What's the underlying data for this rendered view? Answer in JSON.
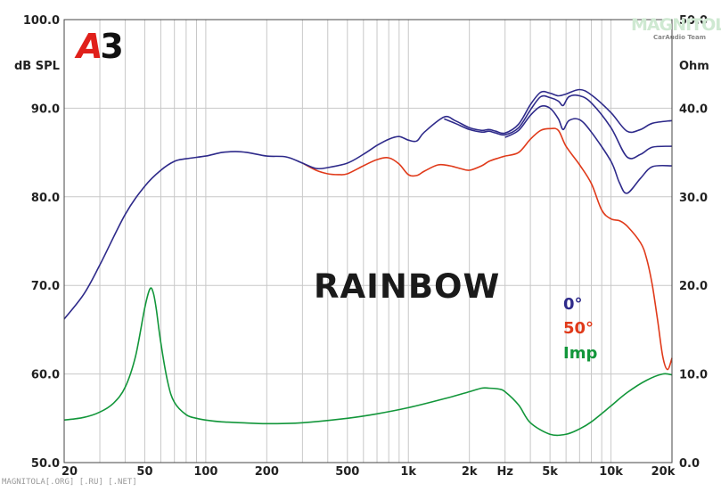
{
  "header": {
    "logo_letter": "A",
    "logo_number": "3",
    "brand_name": "MAGNITOLA",
    "brand_sub": "CarAudio Team"
  },
  "footer": {
    "watermark": "MAGNITOLA[.ORG] [.RU] [.NET]"
  },
  "colors": {
    "on_axis": "#2e2a8a",
    "off_axis": "#e03a1a",
    "impedance": "#12963a",
    "grid": "#c8c8c8"
  },
  "chart_data": {
    "type": "line",
    "title": "RAINBOW",
    "xscale": "log",
    "xlim": [
      20,
      20000
    ],
    "x_ticks": [
      {
        "v": 20,
        "label": "20"
      },
      {
        "v": 50,
        "label": "50"
      },
      {
        "v": 100,
        "label": "100"
      },
      {
        "v": 200,
        "label": "200"
      },
      {
        "v": 500,
        "label": "500"
      },
      {
        "v": 1000,
        "label": "1k"
      },
      {
        "v": 2000,
        "label": "2k"
      },
      {
        "v": 5000,
        "label": "5k"
      },
      {
        "v": 10000,
        "label": "10k"
      },
      {
        "v": 20000,
        "label": "20k"
      }
    ],
    "x_unit_label": "Hz",
    "x_unit_at": 3000,
    "ylabel_left": "dB SPL",
    "ylim_left": [
      50,
      100
    ],
    "y_ticks_left": [
      "50.0",
      "60.0",
      "70.0",
      "80.0",
      "90.0",
      "100.0"
    ],
    "ylabel_right": "Ohm",
    "ylim_right": [
      0,
      50
    ],
    "y_ticks_right": [
      "0.0",
      "10.0",
      "20.0",
      "30.0",
      "40.0",
      "50.0"
    ],
    "grid": true,
    "legend_position": "center-right",
    "legend": [
      {
        "label": "0°",
        "color": "#2e2a8a"
      },
      {
        "label": "50°",
        "color": "#e03a1a"
      },
      {
        "label": "Imp",
        "color": "#12963a"
      }
    ],
    "series": [
      {
        "name": "0°",
        "axis": "left",
        "color": "#2e2a8a",
        "x": [
          20,
          25,
          30,
          40,
          50,
          60,
          70,
          80,
          100,
          120,
          140,
          160,
          200,
          250,
          300,
          350,
          400,
          500,
          600,
          700,
          800,
          900,
          1000,
          1100,
          1200,
          1500,
          1700,
          2000,
          2300,
          2500,
          2700,
          3000,
          3500,
          4000,
          4500,
          5000,
          5500,
          6000,
          7000,
          8000,
          10000,
          12000,
          14000,
          16000,
          20000
        ],
        "y": [
          66.2,
          69,
          72.3,
          78,
          81.2,
          83,
          84,
          84.3,
          84.6,
          85,
          85.1,
          85,
          84.6,
          84.5,
          83.8,
          83.2,
          83.3,
          83.8,
          84.8,
          85.8,
          86.5,
          86.8,
          86.4,
          86.3,
          87.3,
          89,
          88.6,
          87.8,
          87.5,
          87.6,
          87.4,
          87.2,
          88.2,
          90.4,
          91.8,
          91.7,
          91.4,
          91.6,
          92.1,
          91.5,
          89.5,
          87.4,
          87.6,
          88.3,
          88.6
        ]
      },
      {
        "name": "0°",
        "axis": "left",
        "color": "#2e2a8a",
        "x": [
          1500,
          1700,
          2000,
          2300,
          2500,
          2700,
          3000,
          3500,
          4000,
          4500,
          5000,
          5500,
          5800,
          6200,
          7000,
          8000,
          10000,
          12000,
          14000,
          16000,
          20000
        ],
        "y": [
          88.8,
          88.3,
          87.6,
          87.3,
          87.4,
          87.2,
          87,
          87.8,
          89.8,
          91.3,
          91.2,
          90.8,
          90.3,
          91.3,
          91.4,
          90.6,
          87.8,
          84.5,
          84.8,
          85.6,
          85.7
        ]
      },
      {
        "name": "0°",
        "axis": "left",
        "color": "#2e2a8a",
        "x": [
          3000,
          3500,
          4000,
          4500,
          5000,
          5500,
          5800,
          6200,
          7000,
          8000,
          10000,
          11000,
          12000,
          14000,
          16000,
          20000
        ],
        "y": [
          86.7,
          87.5,
          89.2,
          90.2,
          90,
          88.8,
          87.6,
          88.6,
          88.7,
          87.3,
          84,
          81.6,
          80.4,
          82.1,
          83.4,
          83.5
        ]
      },
      {
        "name": "50°",
        "axis": "left",
        "color": "#e03a1a",
        "x": [
          300,
          350,
          400,
          450,
          500,
          600,
          700,
          800,
          900,
          1000,
          1100,
          1200,
          1400,
          1600,
          1800,
          2000,
          2300,
          2500,
          2800,
          3000,
          3500,
          4000,
          4500,
          5000,
          5500,
          6000,
          7000,
          8000,
          9000,
          10000,
          11000,
          12000,
          14000,
          15000,
          16000,
          17000,
          18000,
          19000,
          20000
        ],
        "y": [
          83.8,
          83,
          82.6,
          82.5,
          82.6,
          83.5,
          84.2,
          84.4,
          83.7,
          82.5,
          82.4,
          82.9,
          83.6,
          83.5,
          83.2,
          83,
          83.5,
          84,
          84.4,
          84.6,
          85,
          86.5,
          87.5,
          87.7,
          87.5,
          85.7,
          83.6,
          81.5,
          78.5,
          77.5,
          77.3,
          76.7,
          74.8,
          73,
          70,
          66,
          62,
          60.5,
          61.8
        ]
      },
      {
        "name": "Imp",
        "axis": "right",
        "color": "#12963a",
        "x": [
          20,
          25,
          30,
          35,
          40,
          45,
          50,
          53,
          55,
          57,
          60,
          65,
          70,
          80,
          90,
          100,
          120,
          150,
          200,
          300,
          500,
          700,
          1000,
          1500,
          2000,
          2300,
          2500,
          2800,
          3000,
          3500,
          4000,
          5000,
          6000,
          7000,
          8000,
          10000,
          12000,
          15000,
          18000,
          20000
        ],
        "y": [
          4.8,
          5.1,
          5.7,
          6.7,
          8.5,
          12,
          17.5,
          19.6,
          19.2,
          17.3,
          13.5,
          9,
          6.8,
          5.4,
          5,
          4.8,
          4.6,
          4.5,
          4.4,
          4.5,
          5,
          5.5,
          6.2,
          7.2,
          8,
          8.4,
          8.4,
          8.3,
          8,
          6.5,
          4.5,
          3.2,
          3.2,
          3.8,
          4.6,
          6.4,
          7.9,
          9.3,
          10,
          9.9
        ]
      }
    ]
  }
}
